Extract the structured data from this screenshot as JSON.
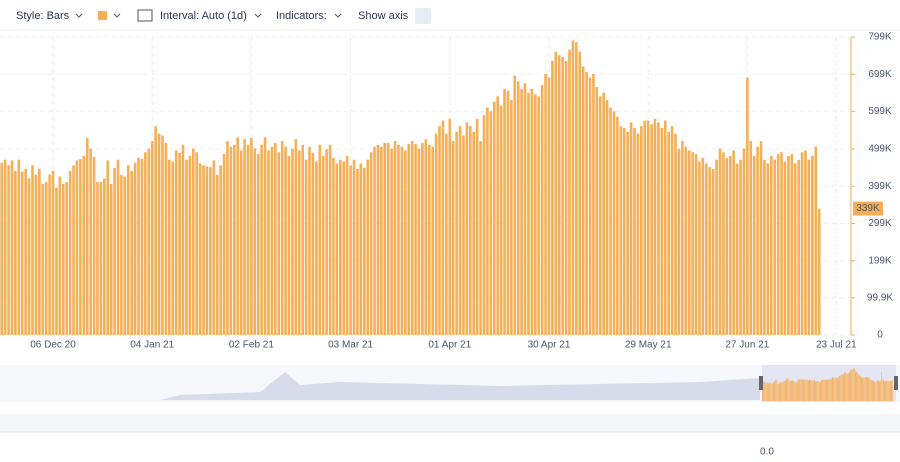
{
  "toolbar": {
    "style": "Style: Bars",
    "interval": "Interval: Auto (1d)",
    "indicators": "Indicators:",
    "show_axis": "Show axis"
  },
  "footer": {
    "zoom": "0.0"
  },
  "chart_data": {
    "type": "bar",
    "color": "#f6ae57",
    "grid": true,
    "ylim": [
      0,
      810
    ],
    "yticks": [
      0,
      {
        "value": 99.9,
        "label": "99.9K"
      },
      {
        "value": 199,
        "label": "199K"
      },
      {
        "value": 299,
        "label": "299K"
      },
      {
        "value": 399,
        "label": "399K"
      },
      {
        "value": 499,
        "label": "499K"
      },
      {
        "value": 599,
        "label": "599K"
      },
      {
        "value": 699,
        "label": "699K"
      },
      {
        "value": 799,
        "label": "799K"
      }
    ],
    "current_label": {
      "value": 339,
      "label": "339K"
    },
    "categories": [
      null,
      null,
      null,
      null,
      null,
      null,
      null,
      null,
      null,
      null,
      null,
      null,
      null,
      null,
      null,
      "06 Dec 20",
      null,
      null,
      null,
      null,
      null,
      null,
      null,
      null,
      null,
      null,
      null,
      null,
      null,
      null,
      null,
      null,
      null,
      null,
      null,
      null,
      null,
      null,
      null,
      null,
      null,
      null,
      null,
      null,
      "04 Jan 21",
      null,
      null,
      null,
      null,
      null,
      null,
      null,
      null,
      null,
      null,
      null,
      null,
      null,
      null,
      null,
      null,
      null,
      null,
      null,
      null,
      null,
      null,
      null,
      null,
      null,
      null,
      null,
      null,
      "02 Feb 21",
      null,
      null,
      null,
      null,
      null,
      null,
      null,
      null,
      null,
      null,
      null,
      null,
      null,
      null,
      null,
      null,
      null,
      null,
      null,
      null,
      null,
      null,
      null,
      null,
      null,
      null,
      null,
      null,
      "03 Mar 21",
      null,
      null,
      null,
      null,
      null,
      null,
      null,
      null,
      null,
      null,
      null,
      null,
      null,
      null,
      null,
      null,
      null,
      null,
      null,
      null,
      null,
      null,
      null,
      null,
      null,
      null,
      null,
      null,
      "01 Apr 21",
      null,
      null,
      null,
      null,
      null,
      null,
      null,
      null,
      null,
      null,
      null,
      null,
      null,
      null,
      null,
      null,
      null,
      null,
      null,
      null,
      null,
      null,
      null,
      null,
      null,
      null,
      null,
      null,
      "30 Apr 21",
      null,
      null,
      null,
      null,
      null,
      null,
      null,
      null,
      null,
      null,
      null,
      null,
      null,
      null,
      null,
      null,
      null,
      null,
      null,
      null,
      null,
      null,
      null,
      null,
      null,
      null,
      null,
      null,
      "29 May 21",
      null,
      null,
      null,
      null,
      null,
      null,
      null,
      null,
      null,
      null,
      null,
      null,
      null,
      null,
      null,
      null,
      null,
      null,
      null,
      null,
      null,
      null,
      null,
      null,
      null,
      null,
      null,
      null,
      "27 Jun 21",
      null,
      null,
      null,
      null,
      null,
      null,
      null,
      null,
      null,
      null,
      null,
      null,
      null,
      null,
      null,
      null,
      null,
      null,
      null,
      null,
      null,
      null,
      null,
      null,
      null,
      "23 Jul 21"
    ],
    "values": [
      462,
      470,
      455,
      468,
      440,
      470,
      438,
      445,
      420,
      455,
      430,
      446,
      405,
      410,
      430,
      440,
      395,
      425,
      405,
      410,
      440,
      455,
      468,
      472,
      480,
      528,
      500,
      478,
      410,
      410,
      420,
      468,
      405,
      448,
      470,
      430,
      425,
      455,
      440,
      462,
      475,
      472,
      490,
      500,
      520,
      560,
      540,
      535,
      515,
      470,
      465,
      495,
      488,
      510,
      470,
      480,
      500,
      490,
      460,
      455,
      452,
      450,
      468,
      430,
      455,
      485,
      520,
      505,
      510,
      530,
      495,
      525,
      510,
      528,
      500,
      485,
      510,
      530,
      495,
      505,
      515,
      490,
      520,
      505,
      480,
      500,
      525,
      495,
      510,
      470,
      505,
      488,
      465,
      510,
      480,
      498,
      510,
      475,
      460,
      470,
      465,
      480,
      455,
      470,
      445,
      460,
      448,
      470,
      490,
      505,
      510,
      505,
      515,
      515,
      500,
      520,
      510,
      505,
      495,
      512,
      520,
      512,
      500,
      515,
      525,
      510,
      505,
      540,
      560,
      575,
      540,
      580,
      520,
      545,
      560,
      535,
      570,
      560,
      545,
      580,
      520,
      590,
      610,
      600,
      625,
      640,
      615,
      660,
      655,
      630,
      695,
      680,
      660,
      675,
      650,
      660,
      645,
      640,
      670,
      700,
      690,
      735,
      760,
      750,
      745,
      735,
      765,
      790,
      785,
      760,
      720,
      705,
      690,
      700,
      665,
      640,
      650,
      630,
      610,
      600,
      585,
      560,
      555,
      545,
      570,
      555,
      540,
      560,
      575,
      575,
      565,
      580,
      570,
      555,
      575,
      545,
      560,
      540,
      500,
      520,
      505,
      495,
      490,
      485,
      465,
      475,
      460,
      450,
      445,
      470,
      500,
      490,
      475,
      480,
      495,
      460,
      470,
      500,
      690,
      520,
      480,
      505,
      520,
      470,
      460,
      480,
      470,
      485,
      490,
      465,
      480,
      485,
      460,
      470,
      490,
      495,
      470,
      480,
      505,
      339,
      null,
      null,
      null,
      null,
      null
    ]
  }
}
